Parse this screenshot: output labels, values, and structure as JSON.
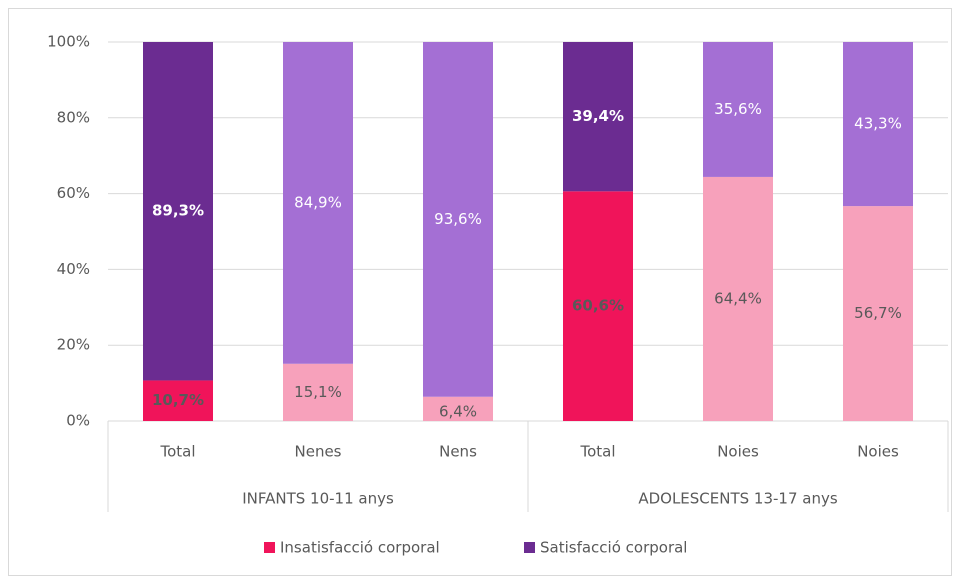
{
  "chart_data": {
    "type": "stacked_bar",
    "groups": [
      {
        "name": "INFANTS 10-11 anys",
        "categories": [
          "Total",
          "Nenes",
          "Nens"
        ]
      },
      {
        "name": "ADOLESCENTS 13-17 anys",
        "categories": [
          "Total",
          "Noies",
          "Noies"
        ]
      }
    ],
    "series": [
      {
        "name": "Insatisfacció corporal",
        "color": "#f0145a",
        "label_color": "#595959",
        "colors": [
          "#f0145a",
          "#f7a1bb",
          "#f7a1bb",
          "#f0145a",
          "#f7a1bb",
          "#f7a1bb"
        ],
        "values": [
          10.7,
          15.1,
          6.4,
          60.6,
          64.4,
          56.7
        ],
        "value_labels": [
          "10,7%",
          "15,1%",
          "6,4%",
          "60,6%",
          "64,4%",
          "56,7%"
        ]
      },
      {
        "name": "Satisfacció corporal",
        "color": "#6b2c91",
        "label_color": "#ffffff",
        "colors": [
          "#6b2c91",
          "#a46fd4",
          "#a46fd4",
          "#6b2c91",
          "#a46fd4",
          "#a46fd4"
        ],
        "values": [
          89.3,
          84.9,
          93.6,
          39.4,
          35.6,
          43.3
        ],
        "value_labels": [
          "89,3%",
          "84,9%",
          "93,6%",
          "39,4%",
          "35,6%",
          "43,3%"
        ]
      }
    ],
    "ylim": [
      0,
      100
    ],
    "yticks": [
      {
        "value": 0,
        "label": "0%"
      },
      {
        "value": 20,
        "label": "20%"
      },
      {
        "value": 40,
        "label": "40%"
      },
      {
        "value": 60,
        "label": "60%"
      },
      {
        "value": 80,
        "label": "80%"
      },
      {
        "value": 100,
        "label": "100%"
      }
    ],
    "grid": true,
    "legend": "bottom"
  }
}
